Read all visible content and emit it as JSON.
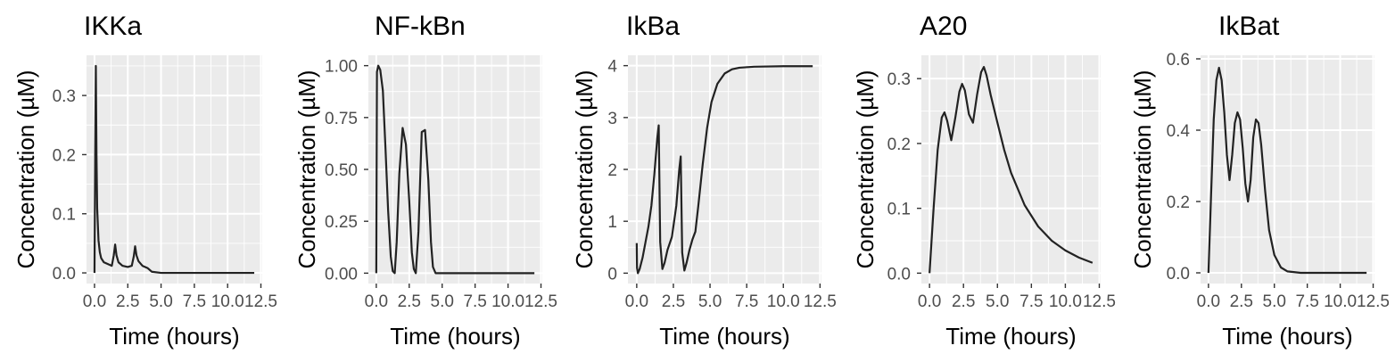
{
  "chart_data": [
    {
      "type": "line",
      "title": "IKKa",
      "xlabel": "Time (hours)",
      "ylabel": "Concentration (µM)",
      "xlim": [
        -0.6,
        12.6
      ],
      "ylim": [
        -0.018,
        0.368
      ],
      "xticks": [
        0,
        2.5,
        5,
        7.5,
        10,
        12.5
      ],
      "xtick_labels": [
        "0.0",
        "2.5",
        "5.0",
        "7.5",
        "10.0",
        "12.5"
      ],
      "yticks": [
        0,
        0.1,
        0.2,
        0.3
      ],
      "ytick_labels": [
        "0.0",
        "0.1",
        "0.2",
        "0.3"
      ],
      "grid": true,
      "series": [
        {
          "x": [
            0,
            0.05,
            0.1,
            0.15,
            0.2,
            0.3,
            0.4,
            0.5,
            0.7,
            1.0,
            1.3,
            1.45,
            1.55,
            1.65,
            1.8,
            2.1,
            2.5,
            2.8,
            2.95,
            3.05,
            3.15,
            3.3,
            3.6,
            4.0,
            4.3,
            5,
            6,
            8,
            10,
            12
          ],
          "y": [
            0,
            0.2,
            0.35,
            0.2,
            0.11,
            0.055,
            0.035,
            0.025,
            0.018,
            0.015,
            0.012,
            0.03,
            0.048,
            0.03,
            0.018,
            0.012,
            0.01,
            0.012,
            0.028,
            0.045,
            0.03,
            0.02,
            0.012,
            0.008,
            0.002,
            0,
            0,
            0,
            0,
            0
          ]
        }
      ]
    },
    {
      "type": "line",
      "title": "NF-kBn",
      "xlabel": "Time (hours)",
      "ylabel": "Concentration (µM)",
      "xlim": [
        -0.6,
        12.6
      ],
      "ylim": [
        -0.05,
        1.05
      ],
      "xticks": [
        0,
        2.5,
        5,
        7.5,
        10,
        12.5
      ],
      "xtick_labels": [
        "0.0",
        "2.5",
        "5.0",
        "7.5",
        "10.0",
        "12.5"
      ],
      "yticks": [
        0,
        0.25,
        0.5,
        0.75,
        1
      ],
      "ytick_labels": [
        "0.00",
        "0.25",
        "0.50",
        "0.75",
        "1.00"
      ],
      "grid": true,
      "series": [
        {
          "x": [
            0,
            0.05,
            0.15,
            0.3,
            0.5,
            0.7,
            0.9,
            1.1,
            1.25,
            1.4,
            1.55,
            1.75,
            2.0,
            2.25,
            2.5,
            2.7,
            2.85,
            3.0,
            3.2,
            3.45,
            3.7,
            3.95,
            4.15,
            4.3,
            4.5,
            5,
            7,
            9,
            12
          ],
          "y": [
            0,
            0.97,
            1.0,
            0.98,
            0.88,
            0.6,
            0.3,
            0.08,
            0.01,
            0.0,
            0.15,
            0.48,
            0.7,
            0.62,
            0.35,
            0.1,
            0.02,
            0.0,
            0.2,
            0.68,
            0.69,
            0.45,
            0.15,
            0.03,
            0.0,
            0,
            0,
            0,
            0
          ]
        }
      ]
    },
    {
      "type": "line",
      "title": "IkBa",
      "xlabel": "Time (hours)",
      "ylabel": "Concentration (µM)",
      "xlim": [
        -0.6,
        12.6
      ],
      "ylim": [
        -0.2,
        4.2
      ],
      "xticks": [
        0,
        2.5,
        5,
        7.5,
        10,
        12.5
      ],
      "xtick_labels": [
        "0.0",
        "2.5",
        "5.0",
        "7.5",
        "10.0",
        "12.5"
      ],
      "yticks": [
        0,
        1,
        2,
        3,
        4
      ],
      "ytick_labels": [
        "0",
        "1",
        "2",
        "3",
        "4"
      ],
      "grid": true,
      "series": [
        {
          "x": [
            0,
            0.02,
            0.08,
            0.2,
            0.4,
            0.6,
            0.8,
            1.0,
            1.2,
            1.4,
            1.5,
            1.6,
            1.75,
            1.9,
            2.1,
            2.4,
            2.7,
            2.9,
            3.0,
            3.1,
            3.25,
            3.4,
            3.6,
            3.8,
            4.0,
            4.2,
            4.5,
            4.8,
            5.1,
            5.5,
            6.0,
            6.5,
            7.0,
            8.0,
            10,
            12
          ],
          "y": [
            0.58,
            0.1,
            0.0,
            0.08,
            0.3,
            0.6,
            0.9,
            1.3,
            1.9,
            2.6,
            2.85,
            0.6,
            0.08,
            0.2,
            0.45,
            0.7,
            1.3,
            2.0,
            2.25,
            0.4,
            0.05,
            0.2,
            0.45,
            0.65,
            0.8,
            1.3,
            2.1,
            2.8,
            3.3,
            3.65,
            3.85,
            3.93,
            3.96,
            3.98,
            3.99,
            3.99
          ]
        }
      ]
    },
    {
      "type": "line",
      "title": "A20",
      "xlabel": "Time (hours)",
      "ylabel": "Concentration (µM)",
      "xlim": [
        -0.6,
        12.6
      ],
      "ylim": [
        -0.016,
        0.336
      ],
      "xticks": [
        0,
        2.5,
        5,
        7.5,
        10,
        12.5
      ],
      "xtick_labels": [
        "0.0",
        "2.5",
        "5.0",
        "7.5",
        "10.0",
        "12.5"
      ],
      "yticks": [
        0,
        0.1,
        0.2,
        0.3
      ],
      "ytick_labels": [
        "0.0",
        "0.1",
        "0.2",
        "0.3"
      ],
      "grid": true,
      "series": [
        {
          "x": [
            0,
            0.3,
            0.6,
            0.9,
            1.1,
            1.3,
            1.6,
            1.9,
            2.2,
            2.4,
            2.6,
            2.9,
            3.2,
            3.5,
            3.8,
            4.0,
            4.2,
            4.5,
            5,
            5.5,
            6,
            7,
            8,
            9,
            10,
            11,
            12
          ],
          "y": [
            0,
            0.1,
            0.19,
            0.24,
            0.248,
            0.235,
            0.205,
            0.24,
            0.28,
            0.292,
            0.282,
            0.245,
            0.232,
            0.275,
            0.31,
            0.318,
            0.305,
            0.275,
            0.232,
            0.19,
            0.155,
            0.105,
            0.072,
            0.05,
            0.035,
            0.024,
            0.016
          ]
        }
      ]
    },
    {
      "type": "line",
      "title": "IkBat",
      "xlabel": "Time (hours)",
      "ylabel": "Concentration (µM)",
      "xlim": [
        -0.6,
        12.6
      ],
      "ylim": [
        -0.03,
        0.61
      ],
      "xticks": [
        0,
        2.5,
        5,
        7.5,
        10,
        12.5
      ],
      "xtick_labels": [
        "0.0",
        "2.5",
        "5.0",
        "7.5",
        "10.0",
        "12.5"
      ],
      "yticks": [
        0,
        0.2,
        0.4,
        0.6
      ],
      "ytick_labels": [
        "0.0",
        "0.2",
        "0.4",
        "0.6"
      ],
      "grid": true,
      "series": [
        {
          "x": [
            0,
            0.2,
            0.4,
            0.6,
            0.8,
            1.0,
            1.2,
            1.4,
            1.6,
            1.8,
            2.0,
            2.2,
            2.4,
            2.6,
            2.8,
            3.0,
            3.2,
            3.4,
            3.6,
            3.8,
            4.0,
            4.3,
            4.6,
            5.0,
            5.5,
            6.0,
            7,
            8,
            10,
            12
          ],
          "y": [
            0,
            0.22,
            0.43,
            0.54,
            0.575,
            0.54,
            0.45,
            0.33,
            0.26,
            0.33,
            0.42,
            0.45,
            0.43,
            0.35,
            0.25,
            0.2,
            0.26,
            0.38,
            0.43,
            0.42,
            0.36,
            0.23,
            0.12,
            0.05,
            0.015,
            0.004,
            0,
            0,
            0,
            0
          ]
        }
      ]
    }
  ]
}
